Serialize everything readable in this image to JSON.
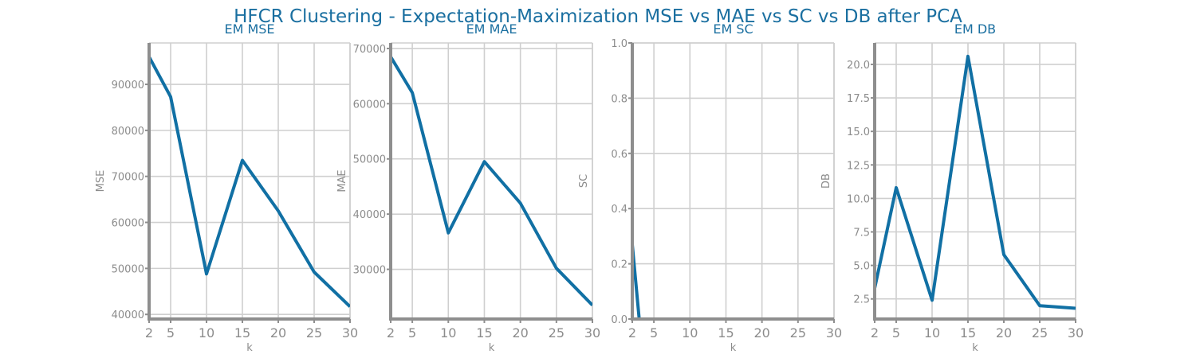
{
  "figure": {
    "title": "HFCR Clustering - Expectation-Maximization MSE vs MAE vs SC vs DB after PCA"
  },
  "colors": {
    "line": "#1170a4",
    "title": "#1a6fa0",
    "spine": "#8e8e8e",
    "grid": "#cfcfcf",
    "tick_text": "#8c8c8c"
  },
  "chart_data": [
    {
      "type": "line",
      "title": "EM MSE",
      "xlabel": "k",
      "ylabel": "MSE",
      "x": [
        2,
        5,
        10,
        15,
        20,
        25,
        30
      ],
      "y": [
        96000,
        87300,
        48800,
        73500,
        62500,
        49200,
        41700
      ],
      "xlim": [
        2,
        30
      ],
      "ylim": [
        39000,
        99000
      ],
      "xticks": [
        2,
        5,
        10,
        15,
        20,
        25,
        30
      ],
      "yticks": [
        40000,
        50000,
        60000,
        70000,
        80000,
        90000
      ],
      "ytick_decimals": 0,
      "grid": true
    },
    {
      "type": "line",
      "title": "EM MAE",
      "xlabel": "k",
      "ylabel": "MAE",
      "x": [
        2,
        5,
        10,
        15,
        20,
        25,
        30
      ],
      "y": [
        68500,
        62000,
        36600,
        49500,
        42000,
        30200,
        23500
      ],
      "xlim": [
        2,
        30
      ],
      "ylim": [
        21000,
        71000
      ],
      "xticks": [
        2,
        5,
        10,
        15,
        20,
        25,
        30
      ],
      "yticks": [
        30000,
        40000,
        50000,
        60000,
        70000
      ],
      "ytick_decimals": 0,
      "grid": true
    },
    {
      "type": "line",
      "title": "EM SC",
      "xlabel": "k",
      "ylabel": "SC",
      "x": [
        2,
        3,
        5,
        10,
        15,
        20,
        25,
        30
      ],
      "y": [
        0.27,
        -0.01,
        -0.05,
        -0.05,
        -0.05,
        -0.05,
        -0.05,
        -0.05
      ],
      "xlim": [
        2,
        30
      ],
      "ylim": [
        0,
        1
      ],
      "xticks": [
        2,
        5,
        10,
        15,
        20,
        25,
        30
      ],
      "yticks": [
        0.0,
        0.2,
        0.4,
        0.6,
        0.8,
        1.0
      ],
      "ytick_decimals": 1,
      "grid": true
    },
    {
      "type": "line",
      "title": "EM DB",
      "xlabel": "k",
      "ylabel": "DB",
      "x": [
        2,
        5,
        10,
        15,
        20,
        25,
        30
      ],
      "y": [
        3.3,
        10.8,
        2.4,
        20.6,
        5.8,
        2.0,
        1.8
      ],
      "xlim": [
        2,
        30
      ],
      "ylim": [
        1.0,
        21.6
      ],
      "xticks": [
        2,
        5,
        10,
        15,
        20,
        25,
        30
      ],
      "yticks": [
        2.5,
        5.0,
        7.5,
        10.0,
        12.5,
        15.0,
        17.5,
        20.0
      ],
      "ytick_decimals": 1,
      "grid": true
    }
  ]
}
